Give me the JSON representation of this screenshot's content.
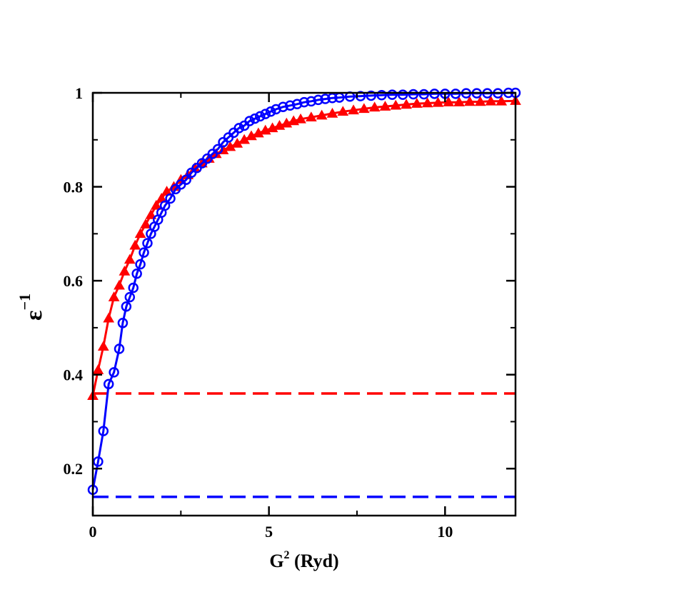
{
  "chart_data": {
    "type": "line",
    "xlabel": {
      "base": "G",
      "sup": "2",
      "rest": " (Ryd)"
    },
    "ylabel": {
      "base": "ε",
      "sup": "−1"
    },
    "xlim": [
      0,
      12
    ],
    "ylim": [
      0.1,
      1.0
    ],
    "xticks": [
      0,
      5,
      10
    ],
    "xtick_labels": [
      "0",
      "5",
      "10"
    ],
    "yticks": [
      0.2,
      0.4,
      0.6,
      0.8,
      1.0
    ],
    "ytick_labels": [
      "0.2",
      "0.4",
      "0.6",
      "0.8",
      "1"
    ],
    "grid": false,
    "legend": "none",
    "series": [
      {
        "color": "#ff0000",
        "marker": "triangle",
        "x": [
          0.0,
          0.15,
          0.3,
          0.45,
          0.6,
          0.75,
          0.9,
          1.05,
          1.2,
          1.35,
          1.5,
          1.65,
          1.8,
          1.95,
          2.1,
          2.3,
          2.5,
          2.7,
          2.9,
          3.1,
          3.3,
          3.5,
          3.7,
          3.9,
          4.1,
          4.3,
          4.5,
          4.7,
          4.9,
          5.1,
          5.3,
          5.5,
          5.7,
          5.9,
          6.2,
          6.5,
          6.8,
          7.1,
          7.4,
          7.7,
          8.0,
          8.3,
          8.6,
          8.9,
          9.2,
          9.5,
          9.8,
          10.1,
          10.4,
          10.7,
          11.0,
          11.3,
          11.6,
          12.0
        ],
        "y": [
          0.355,
          0.41,
          0.46,
          0.52,
          0.565,
          0.59,
          0.62,
          0.645,
          0.675,
          0.7,
          0.72,
          0.74,
          0.76,
          0.775,
          0.79,
          0.8,
          0.815,
          0.825,
          0.84,
          0.85,
          0.86,
          0.87,
          0.878,
          0.885,
          0.892,
          0.9,
          0.908,
          0.914,
          0.92,
          0.925,
          0.93,
          0.935,
          0.94,
          0.944,
          0.948,
          0.952,
          0.956,
          0.96,
          0.963,
          0.966,
          0.969,
          0.971,
          0.973,
          0.975,
          0.977,
          0.978,
          0.979,
          0.98,
          0.98,
          0.981,
          0.981,
          0.982,
          0.982,
          0.983
        ]
      },
      {
        "color": "#0000ff",
        "marker": "circle",
        "x": [
          0.0,
          0.15,
          0.3,
          0.45,
          0.6,
          0.75,
          0.85,
          0.95,
          1.05,
          1.15,
          1.25,
          1.35,
          1.45,
          1.55,
          1.65,
          1.75,
          1.85,
          1.95,
          2.05,
          2.2,
          2.35,
          2.5,
          2.65,
          2.8,
          2.95,
          3.1,
          3.25,
          3.4,
          3.55,
          3.7,
          3.85,
          4.0,
          4.15,
          4.3,
          4.45,
          4.6,
          4.75,
          4.9,
          5.05,
          5.2,
          5.4,
          5.6,
          5.8,
          6.0,
          6.2,
          6.4,
          6.6,
          6.8,
          7.0,
          7.3,
          7.6,
          7.9,
          8.2,
          8.5,
          8.8,
          9.1,
          9.4,
          9.7,
          10.0,
          10.3,
          10.6,
          10.9,
          11.2,
          11.5,
          11.8,
          12.0
        ],
        "y": [
          0.155,
          0.215,
          0.28,
          0.38,
          0.405,
          0.455,
          0.51,
          0.545,
          0.565,
          0.585,
          0.615,
          0.635,
          0.66,
          0.68,
          0.7,
          0.715,
          0.73,
          0.745,
          0.76,
          0.775,
          0.795,
          0.805,
          0.815,
          0.83,
          0.84,
          0.85,
          0.86,
          0.87,
          0.88,
          0.895,
          0.905,
          0.915,
          0.925,
          0.93,
          0.94,
          0.945,
          0.95,
          0.955,
          0.96,
          0.965,
          0.97,
          0.973,
          0.976,
          0.98,
          0.982,
          0.985,
          0.987,
          0.989,
          0.99,
          0.992,
          0.993,
          0.994,
          0.995,
          0.996,
          0.996,
          0.997,
          0.997,
          0.998,
          0.998,
          0.998,
          0.999,
          0.999,
          0.999,
          0.999,
          1.0,
          1.0
        ]
      }
    ],
    "reference_lines": [
      {
        "color": "#ff0000",
        "y": 0.36,
        "style": "dashed"
      },
      {
        "color": "#0000ff",
        "y": 0.14,
        "style": "dashed"
      }
    ]
  }
}
